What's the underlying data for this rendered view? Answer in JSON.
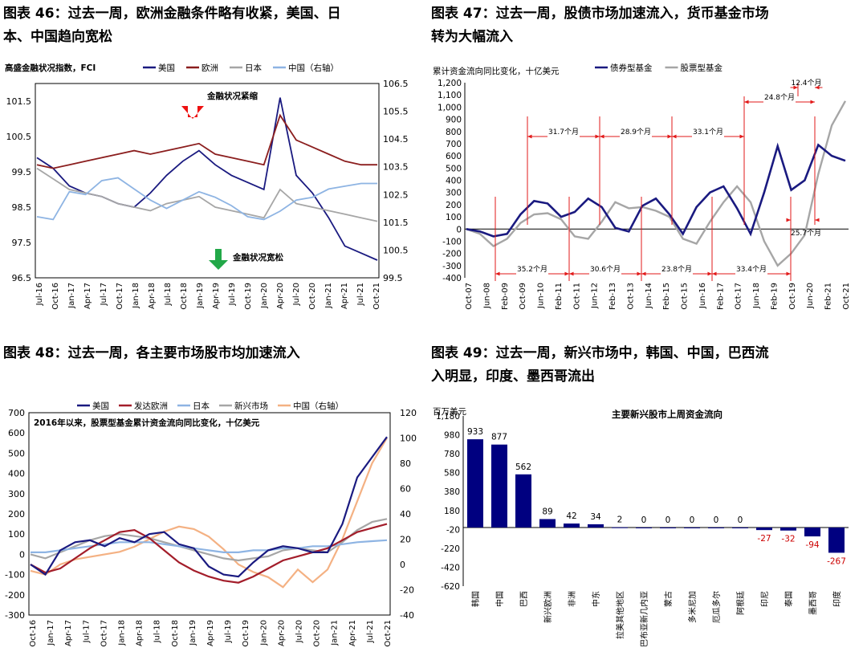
{
  "figures": {
    "f46": {
      "title_line1": "图表 46：过去一周，欧洲金融条件略有收紧，美国、日",
      "title_line2": "本、中国趋向宽松",
      "ylabel": "高盛金融状况指数，FCI",
      "legend": [
        "美国",
        "欧洲",
        "日本",
        "中国（右轴）"
      ],
      "annot_up": "金融状况紧缩",
      "annot_down": "金融状况宽松"
    },
    "f47": {
      "title_line1": "图表 47：过去一周，股债市场加速流入，货币基金市场",
      "title_line2": "转为大幅流入",
      "ylabel": "累计资金流向同比变化，十亿美元",
      "legend": [
        "债券型基金",
        "股票型基金"
      ],
      "intervals_top": [
        "31.7个月",
        "28.9个月",
        "33.1个月",
        "24.8个月",
        "12.4个月"
      ],
      "intervals_bottom": [
        "35.2个月",
        "30.6个月",
        "23.8个月",
        "33.4个月",
        "25.7个月"
      ]
    },
    "f48": {
      "title_line1": "图表 48：过去一周，各主要市场股市均加速流入",
      "legend": [
        "美国",
        "发达欧洲",
        "日本",
        "新兴市场",
        "中国（右轴）"
      ],
      "note": "2016年以来，股票型基金累计资金流向同比变化，十亿美元"
    },
    "f49": {
      "title_line1": "图表 49：过去一周，新兴市场中，韩国、中国，巴西流",
      "title_line2": "入明显，印度、墨西哥流出",
      "unit": "百万美元",
      "chart_title": "主要新兴股市上周资金流向"
    }
  },
  "chart_data": [
    {
      "type": "line",
      "id": "fci",
      "title": "高盛金融状况指数，FCI",
      "x": [
        "Jul-16",
        "Oct-16",
        "Jan-17",
        "Apr-17",
        "Jul-17",
        "Oct-17",
        "Jan-18",
        "Apr-18",
        "Jul-18",
        "Oct-18",
        "Jan-19",
        "Apr-19",
        "Jul-19",
        "Oct-19",
        "Jan-20",
        "Apr-20",
        "Jul-20",
        "Oct-20",
        "Jan-21",
        "Apr-21",
        "Jul-21",
        "Oct-21"
      ],
      "xticks": [
        "Jul-16",
        "Oct-16",
        "Jan-17",
        "Apr-17",
        "Jul-17",
        "Oct-17",
        "Jan-18",
        "Apr-18",
        "Jul-18",
        "Oct-18",
        "Jan-19",
        "Apr-19",
        "Jul-19",
        "Oct-19",
        "Jan-20",
        "Apr-20",
        "Jul-20",
        "Oct-20",
        "Jan-21",
        "Apr-21",
        "Jul-21",
        "Oct-21"
      ],
      "ylim": [
        96.5,
        102.0
      ],
      "yticks": [
        "101.5",
        "100.5",
        "99.5",
        "98.5",
        "97.5",
        "96.5"
      ],
      "y2lim": [
        99.5,
        106.5
      ],
      "y2ticks": [
        "106.5",
        "105.5",
        "104.5",
        "103.5",
        "102.5",
        "101.5",
        "100.5",
        "99.5"
      ],
      "series": [
        {
          "name": "美国",
          "axis": "left",
          "color": "#1a1a80",
          "values": [
            99.9,
            99.6,
            99.1,
            98.9,
            98.8,
            98.6,
            98.5,
            98.9,
            99.4,
            99.8,
            100.1,
            99.7,
            99.4,
            99.2,
            99.0,
            101.6,
            99.4,
            98.9,
            98.2,
            97.4,
            97.2,
            97.0
          ]
        },
        {
          "name": "欧洲",
          "axis": "left",
          "color": "#8b1e1e",
          "values": [
            99.7,
            99.6,
            99.7,
            99.8,
            99.9,
            100.0,
            100.1,
            100.0,
            100.1,
            100.2,
            100.3,
            100.0,
            99.9,
            99.8,
            99.7,
            101.1,
            100.4,
            100.2,
            100.0,
            99.8,
            99.7,
            99.7
          ]
        },
        {
          "name": "日本",
          "axis": "left",
          "color": "#a6a6a6",
          "values": [
            99.6,
            99.3,
            99.0,
            98.9,
            98.8,
            98.6,
            98.5,
            98.4,
            98.6,
            98.7,
            98.8,
            98.5,
            98.4,
            98.3,
            98.2,
            99.0,
            98.6,
            98.5,
            98.4,
            98.3,
            98.2,
            98.1
          ]
        },
        {
          "name": "中国（右轴）",
          "axis": "right",
          "color": "#8eb4e3",
          "values": [
            101.7,
            101.6,
            102.6,
            102.5,
            103.0,
            103.1,
            102.7,
            102.3,
            102.0,
            102.3,
            102.6,
            102.4,
            102.1,
            101.7,
            101.6,
            101.9,
            102.3,
            102.4,
            102.7,
            102.8,
            102.9,
            102.9
          ]
        }
      ]
    },
    {
      "type": "line",
      "id": "fund-flows",
      "title": "累计资金流向同比变化，十亿美元",
      "xticks": [
        "Oct-07",
        "Jun-08",
        "Feb-09",
        "Oct-09",
        "Jun-10",
        "Feb-11",
        "Oct-11",
        "Jun-12",
        "Feb-13",
        "Oct-13",
        "Jun-14",
        "Feb-15",
        "Oct-15",
        "Jun-16",
        "Feb-17",
        "Oct-17",
        "Jun-18",
        "Feb-19",
        "Oct-19",
        "Jun-20",
        "Feb-21",
        "Oct-21"
      ],
      "ylim": [
        -400,
        1200
      ],
      "yticks": [
        "1,200",
        "1,100",
        "1,000",
        "900",
        "800",
        "700",
        "600",
        "500",
        "400",
        "300",
        "200",
        "100",
        "0",
        "-100",
        "-200",
        "-300",
        "-400"
      ],
      "series": [
        {
          "name": "债券型基金",
          "color": "#1a1a80",
          "values": [
            0,
            -20,
            -60,
            -40,
            120,
            230,
            210,
            100,
            140,
            250,
            180,
            10,
            -20,
            190,
            250,
            120,
            -40,
            180,
            300,
            350,
            170,
            -40,
            300,
            680,
            320,
            400,
            690,
            600,
            560
          ]
        },
        {
          "name": "股票型基金",
          "color": "#a6a6a6",
          "values": [
            0,
            -40,
            -140,
            -80,
            50,
            120,
            130,
            80,
            -60,
            -80,
            60,
            220,
            170,
            180,
            150,
            100,
            -80,
            -120,
            60,
            220,
            350,
            220,
            -100,
            -300,
            -200,
            -50,
            450,
            850,
            1050
          ]
        }
      ]
    },
    {
      "type": "line",
      "id": "equity-flows",
      "title": "2016年以来，股票型基金累计资金流向同比变化，十亿美元",
      "xticks": [
        "Oct-16",
        "Jan-17",
        "Apr-17",
        "Jul-17",
        "Oct-17",
        "Jan-18",
        "Apr-18",
        "Jul-18",
        "Oct-18",
        "Jan-19",
        "Apr-19",
        "Jul-19",
        "Oct-19",
        "Jan-20",
        "Apr-20",
        "Jul-20",
        "Oct-20",
        "Jan-21",
        "Apr-21",
        "Jul-21",
        "Oct-21"
      ],
      "ylim": [
        -300,
        700
      ],
      "yticks": [
        "700",
        "600",
        "500",
        "400",
        "300",
        "200",
        "100",
        "0",
        "-100",
        "-200",
        "-300"
      ],
      "y2lim": [
        -40,
        120
      ],
      "y2ticks": [
        "120",
        "100",
        "80",
        "60",
        "40",
        "20",
        "0",
        "-20",
        "-40"
      ],
      "series": [
        {
          "name": "美国",
          "axis": "left",
          "color": "#1a1a80",
          "values": [
            -50,
            -100,
            20,
            60,
            70,
            40,
            80,
            60,
            100,
            110,
            50,
            30,
            -60,
            -100,
            -110,
            -40,
            20,
            40,
            30,
            10,
            10,
            150,
            380,
            480,
            580
          ]
        },
        {
          "name": "发达欧洲",
          "axis": "left",
          "color": "#a31d2a",
          "values": [
            -50,
            -90,
            -70,
            -20,
            30,
            70,
            110,
            120,
            80,
            20,
            -40,
            -80,
            -110,
            -130,
            -140,
            -110,
            -70,
            -30,
            -10,
            10,
            30,
            70,
            110,
            130,
            150
          ]
        },
        {
          "name": "日本",
          "axis": "left",
          "color": "#8eb4e3",
          "values": [
            10,
            10,
            20,
            30,
            40,
            50,
            60,
            60,
            60,
            50,
            40,
            30,
            20,
            10,
            10,
            20,
            20,
            30,
            30,
            40,
            40,
            50,
            60,
            65,
            70
          ]
        },
        {
          "name": "新兴市场",
          "axis": "left",
          "color": "#a6a6a6",
          "values": [
            0,
            -20,
            10,
            40,
            70,
            90,
            100,
            90,
            80,
            60,
            40,
            20,
            0,
            -20,
            -30,
            -20,
            -10,
            20,
            30,
            20,
            10,
            60,
            120,
            160,
            175
          ]
        },
        {
          "name": "中国（右轴）",
          "axis": "right",
          "color": "#f4b183",
          "values": [
            -5,
            -8,
            0,
            4,
            6,
            8,
            10,
            14,
            20,
            26,
            30,
            28,
            22,
            12,
            0,
            -6,
            -10,
            -18,
            -4,
            -14,
            -4,
            20,
            50,
            80,
            100
          ]
        }
      ]
    },
    {
      "type": "bar",
      "id": "em-flows",
      "title": "主要新兴股市上周资金流向",
      "ylabel": "百万美元",
      "ylim": [
        -620,
        1180
      ],
      "yticks": [
        "1,180",
        "980",
        "780",
        "580",
        "380",
        "180",
        "-20",
        "-220",
        "-420",
        "-620"
      ],
      "categories": [
        "韩国",
        "中国",
        "巴西",
        "新兴欧洲",
        "非洲",
        "中东",
        "拉美其他地区",
        "巴布亚新几内亚",
        "蒙古",
        "多米尼加",
        "厄瓜多尔",
        "阿根廷",
        "印尼",
        "泰国",
        "墨西哥",
        "印度"
      ],
      "values": [
        933,
        877,
        562,
        89,
        42,
        34,
        2,
        0,
        0,
        0,
        0,
        0,
        -27,
        -32,
        -94,
        -267
      ],
      "labels": [
        "933",
        "877",
        "562",
        "89",
        "42",
        "34",
        "2",
        "0",
        "0",
        "0",
        "0",
        "0",
        "-27",
        "-32",
        "-94",
        "-267"
      ],
      "bar_color": "#000080",
      "negative_label_color": "#cc0000"
    }
  ]
}
